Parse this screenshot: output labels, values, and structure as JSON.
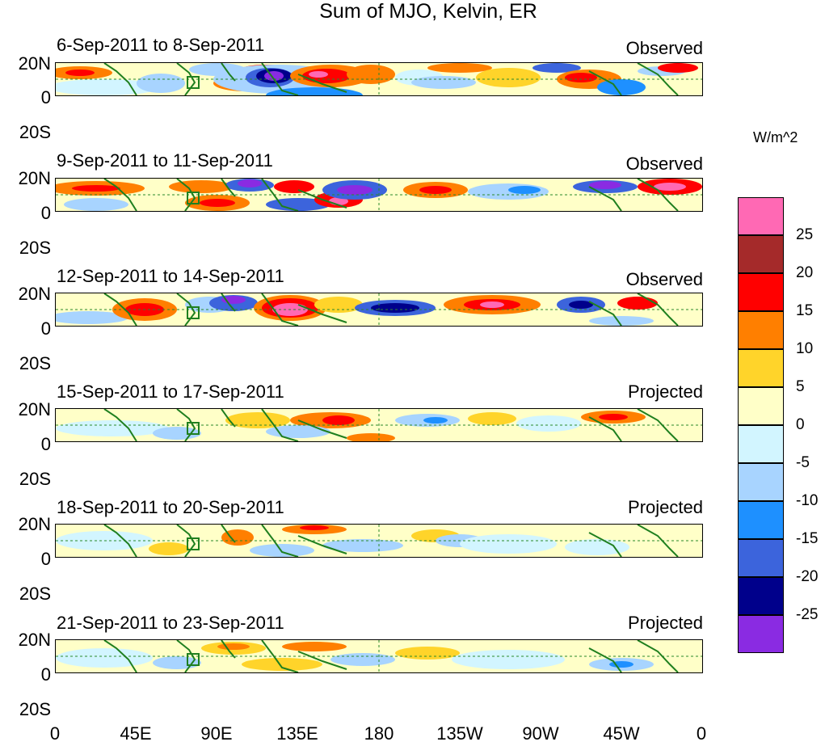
{
  "title": "Sum of MJO, Kelvin, ER",
  "panels": [
    {
      "date": "6-Sep-2011 to 8-Sep-2011",
      "status": "Observed"
    },
    {
      "date": "9-Sep-2011 to 11-Sep-2011",
      "status": "Observed"
    },
    {
      "date": "12-Sep-2011 to 14-Sep-2011",
      "status": "Observed"
    },
    {
      "date": "15-Sep-2011 to 17-Sep-2011",
      "status": "Projected"
    },
    {
      "date": "18-Sep-2011 to 20-Sep-2011",
      "status": "Projected"
    },
    {
      "date": "21-Sep-2011 to 23-Sep-2011",
      "status": "Projected"
    }
  ],
  "lat_labels": [
    "20N",
    "0",
    "20S"
  ],
  "lon_labels": [
    "0",
    "45E",
    "90E",
    "135E",
    "180",
    "135W",
    "90W",
    "45W",
    "0"
  ],
  "colorbar": {
    "title": "W/m^2",
    "labels": [
      "25",
      "20",
      "15",
      "10",
      "5",
      "0",
      "-5",
      "-10",
      "-15",
      "-20",
      "-25"
    ],
    "colors": [
      "#ff69b4",
      "#a52a2a",
      "#ff0000",
      "#ff7f00",
      "#ffd42a",
      "#ffffc8",
      "#d2f5ff",
      "#a8d4ff",
      "#1e90ff",
      "#3c64dc",
      "#00008b",
      "#8a2be2"
    ]
  }
}
